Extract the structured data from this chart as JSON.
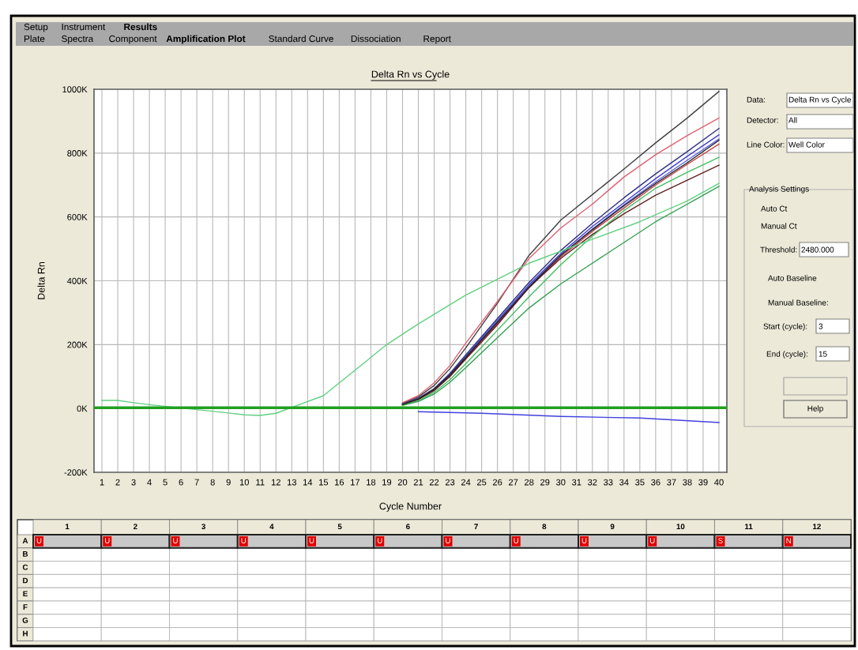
{
  "chart_data": [
    {
      "type": "line",
      "title": "Delta Rn vs Cycle",
      "xlabel": "Cycle Number",
      "ylabel": "Delta Rn",
      "xlim": [
        0.5,
        40.5
      ],
      "xticks": [
        1,
        2,
        3,
        4,
        5,
        6,
        7,
        8,
        9,
        10,
        11,
        12,
        13,
        14,
        15,
        16,
        17,
        18,
        19,
        20,
        21,
        22,
        23,
        24,
        25,
        26,
        27,
        28,
        29,
        30,
        31,
        32,
        33,
        34,
        35,
        36,
        37,
        38,
        39,
        40
      ],
      "ylim": [
        -200,
        1000
      ],
      "yticks": [
        {
          "value": -200,
          "label": "-200K"
        },
        {
          "value": 0,
          "label": "0K"
        },
        {
          "value": 200,
          "label": "200K"
        },
        {
          "value": 400,
          "label": "400K"
        },
        {
          "value": 600,
          "label": "600K"
        },
        {
          "value": 800,
          "label": "800K"
        },
        {
          "value": 1000,
          "label": "1000K"
        }
      ],
      "grid": true,
      "marker": "none",
      "line_style": "solid",
      "x": [
        20,
        21,
        22,
        23,
        24,
        25,
        26,
        28,
        30,
        32,
        34,
        36,
        38,
        40
      ],
      "series": [
        {
          "color": "#404040",
          "values": [
            16,
            36,
            72,
            125,
            190,
            260,
            330,
            480,
            590,
            670,
            750,
            832,
            910,
            993
          ]
        },
        {
          "color": "#e06070",
          "values": [
            18,
            40,
            80,
            135,
            205,
            270,
            335,
            470,
            565,
            640,
            725,
            795,
            855,
            910
          ]
        },
        {
          "color": "#303080",
          "values": [
            14,
            32,
            62,
            110,
            168,
            225,
            282,
            395,
            495,
            580,
            660,
            735,
            805,
            877
          ]
        },
        {
          "color": "#4040d0",
          "values": [
            13,
            31,
            60,
            107,
            163,
            220,
            276,
            388,
            485,
            570,
            645,
            720,
            790,
            857
          ]
        },
        {
          "color": "#6060e0",
          "values": [
            13,
            30,
            59,
            105,
            161,
            217,
            272,
            384,
            480,
            562,
            638,
            710,
            778,
            844
          ]
        },
        {
          "color": "#c04040",
          "values": [
            12,
            29,
            57,
            102,
            157,
            212,
            266,
            378,
            475,
            555,
            628,
            700,
            765,
            828
          ]
        },
        {
          "color": "#602020",
          "values": [
            12,
            28,
            56,
            100,
            155,
            208,
            262,
            380,
            470,
            545,
            610,
            668,
            715,
            762
          ]
        },
        {
          "color": "#40c060",
          "values": [
            10,
            24,
            50,
            90,
            140,
            192,
            245,
            350,
            450,
            540,
            620,
            690,
            740,
            787
          ]
        },
        {
          "color": "#30a050",
          "values": [
            10,
            22,
            45,
            82,
            128,
            175,
            222,
            315,
            390,
            455,
            520,
            585,
            640,
            696
          ]
        },
        {
          "color": "#202020",
          "values": [
            13,
            30,
            60,
            105,
            160,
            215,
            270,
            380,
            480,
            560,
            635,
            705,
            770,
            840
          ]
        },
        {
          "color": "#60d080",
          "x": [
            1,
            2,
            3,
            4,
            9,
            10,
            11,
            12,
            15,
            17,
            19,
            21,
            24,
            28,
            32,
            35,
            38,
            40
          ],
          "values": [
            25,
            25,
            18,
            12,
            -14,
            -20,
            -22,
            -15,
            40,
            120,
            200,
            265,
            355,
            455,
            530,
            585,
            650,
            705
          ]
        },
        {
          "color": "#4040e0",
          "x": [
            21,
            25,
            30,
            35,
            40
          ],
          "values": [
            -10,
            -15,
            -25,
            -30,
            -44
          ]
        }
      ],
      "ref_lines": [
        {
          "axis": "y",
          "value": 2.48,
          "color": "#20a020"
        }
      ],
      "annotations": [
        "Setup",
        "Instrument",
        "Results",
        "Plate",
        "Spectra",
        "Component",
        "Amplification Plot",
        "Standard Curve",
        "Dissociation",
        "Report",
        "Data:",
        "Delta Rn vs Cycle",
        "Detector:",
        "All",
        "Line Color:",
        "Well Color",
        "Analysis Settings",
        "Auto Ct",
        "Manual Ct",
        "Threshold:",
        "2480.000",
        "Auto Baseline",
        "Manual Baseline:",
        "Start (cycle):",
        "3",
        "End (cycle):",
        "15",
        "Help",
        "1",
        "2",
        "3",
        "4",
        "5",
        "6",
        "7",
        "8",
        "9",
        "10",
        "11",
        "12",
        "A",
        "B",
        "C",
        "D",
        "E",
        "F",
        "G",
        "H",
        "U",
        "U",
        "U",
        "U",
        "U",
        "U",
        "U",
        "U",
        "U",
        "U",
        "S",
        "N"
      ]
    }
  ]
}
